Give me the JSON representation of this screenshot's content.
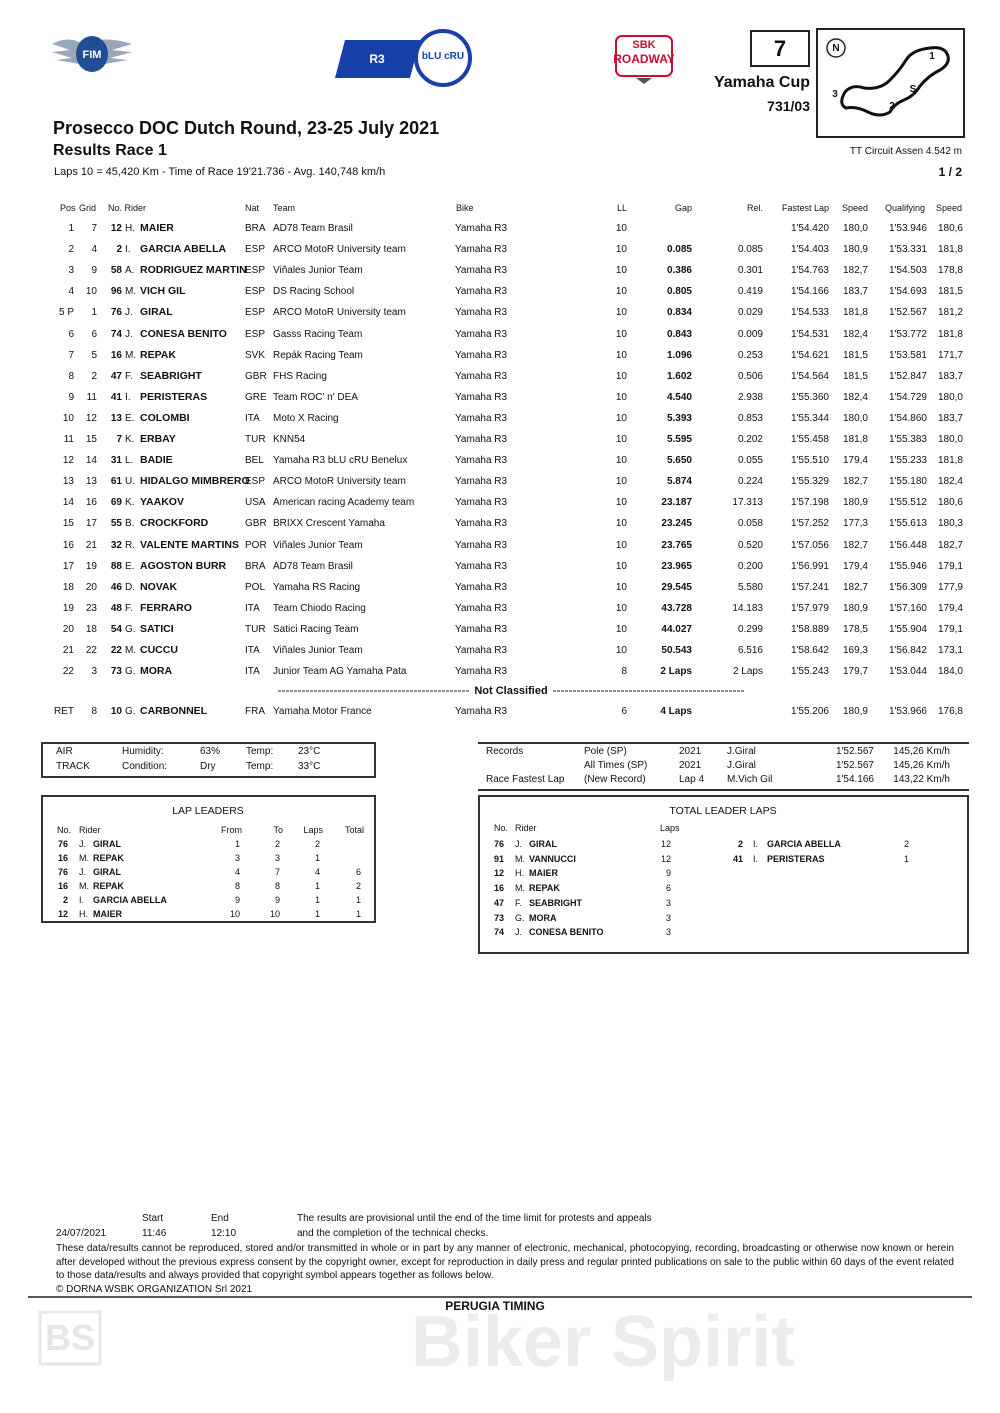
{
  "logos": {
    "fim": "FIM",
    "r3": "R3",
    "blucru": "bLU cRU",
    "sbk": "SBK",
    "roadway": "ROADWAY"
  },
  "header": {
    "round_no": "7",
    "cup": "Yamaha Cup",
    "doc_code": "731/03",
    "title": "Prosecco DOC Dutch Round, 23-25 July 2021",
    "subtitle": "Results Race 1",
    "race_info": "Laps 10 = 45,420 Km  -  Time of Race 19'21.736  -  Avg. 140,748 km/h",
    "circuit": "TT Circuit Assen 4.542 m",
    "page": "1 / 2"
  },
  "map_labels": {
    "north": "N",
    "t1": "1",
    "t2": "2",
    "t3": "3",
    "s": "S"
  },
  "results": {
    "columns": {
      "pos": "Pos",
      "grid": "Grid",
      "rider": "No. Rider",
      "nat": "Nat",
      "team": "Team",
      "bike": "Bike",
      "ll": "LL",
      "gap": "Gap",
      "rel": "Rel.",
      "fast": "Fastest Lap",
      "speed": "Speed",
      "qual": "Qualifying",
      "qspeed": "Speed"
    },
    "rows": [
      {
        "pos": "1",
        "grid": "7",
        "no": "12",
        "init": "H.",
        "name": "MAIER",
        "nat": "BRA",
        "team": "AD78 Team Brasil",
        "bike": "Yamaha R3",
        "ll": "10",
        "fast": "1'54.420",
        "speed": "180,0",
        "qual": "1'53.946",
        "qspeed": "180,6"
      },
      {
        "pos": "2",
        "grid": "4",
        "no": "2",
        "init": "I.",
        "name": "GARCIA ABELLA",
        "nat": "ESP",
        "team": "ARCO MotoR University team",
        "bike": "Yamaha R3",
        "ll": "10",
        "gap": "0.085",
        "rel": "0.085",
        "fast": "1'54.403",
        "speed": "180,9",
        "qual": "1'53.331",
        "qspeed": "181,8"
      },
      {
        "pos": "3",
        "grid": "9",
        "no": "58",
        "init": "A.",
        "name": "RODRIGUEZ MARTIN",
        "nat": "ESP",
        "team": "Viñales Junior Team",
        "bike": "Yamaha R3",
        "ll": "10",
        "gap": "0.386",
        "rel": "0.301",
        "fast": "1'54.763",
        "speed": "182,7",
        "qual": "1'54.503",
        "qspeed": "178,8"
      },
      {
        "pos": "4",
        "grid": "10",
        "no": "96",
        "init": "M.",
        "name": "VICH GIL",
        "nat": "ESP",
        "team": "DS Racing School",
        "bike": "Yamaha R3",
        "ll": "10",
        "gap": "0.805",
        "rel": "0.419",
        "fast": "1'54.166",
        "speed": "183,7",
        "qual": "1'54.693",
        "qspeed": "181,5"
      },
      {
        "pos": "5 P",
        "grid": "1",
        "no": "76",
        "init": "J.",
        "name": "GIRAL",
        "nat": "ESP",
        "team": "ARCO MotoR University team",
        "bike": "Yamaha R3",
        "ll": "10",
        "gap": "0.834",
        "rel": "0.029",
        "fast": "1'54.533",
        "speed": "181,8",
        "qual": "1'52.567",
        "qspeed": "181,2"
      },
      {
        "pos": "6",
        "grid": "6",
        "no": "74",
        "init": "J.",
        "name": "CONESA BENITO",
        "nat": "ESP",
        "team": "Gasss Racing Team",
        "bike": "Yamaha R3",
        "ll": "10",
        "gap": "0.843",
        "rel": "0.009",
        "fast": "1'54.531",
        "speed": "182,4",
        "qual": "1'53.772",
        "qspeed": "181,8"
      },
      {
        "pos": "7",
        "grid": "5",
        "no": "16",
        "init": "M.",
        "name": "REPAK",
        "nat": "SVK",
        "team": "Repák Racing Team",
        "bike": "Yamaha R3",
        "ll": "10",
        "gap": "1.096",
        "rel": "0.253",
        "fast": "1'54.621",
        "speed": "181,5",
        "qual": "1'53.581",
        "qspeed": "171,7"
      },
      {
        "pos": "8",
        "grid": "2",
        "no": "47",
        "init": "F.",
        "name": "SEABRIGHT",
        "nat": "GBR",
        "team": "FHS Racing",
        "bike": "Yamaha R3",
        "ll": "10",
        "gap": "1.602",
        "rel": "0.506",
        "fast": "1'54.564",
        "speed": "181,5",
        "qual": "1'52.847",
        "qspeed": "183,7"
      },
      {
        "pos": "9",
        "grid": "11",
        "no": "41",
        "init": "I.",
        "name": "PERISTERAS",
        "nat": "GRE",
        "team": "Team ROC' n' DEA",
        "bike": "Yamaha R3",
        "ll": "10",
        "gap": "4.540",
        "rel": "2.938",
        "fast": "1'55.360",
        "speed": "182,4",
        "qual": "1'54.729",
        "qspeed": "180,0"
      },
      {
        "pos": "10",
        "grid": "12",
        "no": "13",
        "init": "E.",
        "name": "COLOMBI",
        "nat": "ITA",
        "team": "Moto X Racing",
        "bike": "Yamaha R3",
        "ll": "10",
        "gap": "5.393",
        "rel": "0.853",
        "fast": "1'55.344",
        "speed": "180,0",
        "qual": "1'54.860",
        "qspeed": "183,7"
      },
      {
        "pos": "11",
        "grid": "15",
        "no": "7",
        "init": "K.",
        "name": "ERBAY",
        "nat": "TUR",
        "team": "KNN54",
        "bike": "Yamaha R3",
        "ll": "10",
        "gap": "5.595",
        "rel": "0.202",
        "fast": "1'55.458",
        "speed": "181,8",
        "qual": "1'55.383",
        "qspeed": "180,0"
      },
      {
        "pos": "12",
        "grid": "14",
        "no": "31",
        "init": "L.",
        "name": "BADIE",
        "nat": "BEL",
        "team": "Yamaha R3 bLU cRU Benelux",
        "bike": "Yamaha R3",
        "ll": "10",
        "gap": "5.650",
        "rel": "0.055",
        "fast": "1'55.510",
        "speed": "179,4",
        "qual": "1'55.233",
        "qspeed": "181,8"
      },
      {
        "pos": "13",
        "grid": "13",
        "no": "61",
        "init": "U.",
        "name": "HIDALGO MIMBRERO",
        "nat": "ESP",
        "team": "ARCO MotoR University team",
        "bike": "Yamaha R3",
        "ll": "10",
        "gap": "5.874",
        "rel": "0.224",
        "fast": "1'55.329",
        "speed": "182,7",
        "qual": "1'55.180",
        "qspeed": "182,4"
      },
      {
        "pos": "14",
        "grid": "16",
        "no": "69",
        "init": "K.",
        "name": "YAAKOV",
        "nat": "USA",
        "team": "American racing Academy team",
        "bike": "Yamaha R3",
        "ll": "10",
        "gap": "23.187",
        "rel": "17.313",
        "fast": "1'57.198",
        "speed": "180,9",
        "qual": "1'55.512",
        "qspeed": "180,6"
      },
      {
        "pos": "15",
        "grid": "17",
        "no": "55",
        "init": "B.",
        "name": "CROCKFORD",
        "nat": "GBR",
        "team": "BRIXX Crescent Yamaha",
        "bike": "Yamaha R3",
        "ll": "10",
        "gap": "23.245",
        "rel": "0.058",
        "fast": "1'57.252",
        "speed": "177,3",
        "qual": "1'55.613",
        "qspeed": "180,3"
      },
      {
        "pos": "16",
        "grid": "21",
        "no": "32",
        "init": "R.",
        "name": "VALENTE MARTINS",
        "nat": "POR",
        "team": "Viñales Junior Team",
        "bike": "Yamaha R3",
        "ll": "10",
        "gap": "23.765",
        "rel": "0.520",
        "fast": "1'57.056",
        "speed": "182,7",
        "qual": "1'56.448",
        "qspeed": "182,7"
      },
      {
        "pos": "17",
        "grid": "19",
        "no": "88",
        "init": "E.",
        "name": "AGOSTON BURR",
        "nat": "BRA",
        "team": "AD78 Team Brasil",
        "bike": "Yamaha R3",
        "ll": "10",
        "gap": "23.965",
        "rel": "0.200",
        "fast": "1'56.991",
        "speed": "179,4",
        "qual": "1'55.946",
        "qspeed": "179,1"
      },
      {
        "pos": "18",
        "grid": "20",
        "no": "46",
        "init": "D.",
        "name": "NOVAK",
        "nat": "POL",
        "team": "Yamaha RS Racing",
        "bike": "Yamaha R3",
        "ll": "10",
        "gap": "29.545",
        "rel": "5.580",
        "fast": "1'57.241",
        "speed": "182,7",
        "qual": "1'56.309",
        "qspeed": "177,9"
      },
      {
        "pos": "19",
        "grid": "23",
        "no": "48",
        "init": "F.",
        "name": "FERRARO",
        "nat": "ITA",
        "team": "Team Chiodo Racing",
        "bike": "Yamaha R3",
        "ll": "10",
        "gap": "43.728",
        "rel": "14.183",
        "fast": "1'57.979",
        "speed": "180,9",
        "qual": "1'57.160",
        "qspeed": "179,4"
      },
      {
        "pos": "20",
        "grid": "18",
        "no": "54",
        "init": "G.",
        "name": "SATICI",
        "nat": "TUR",
        "team": "Satici Racing Team",
        "bike": "Yamaha R3",
        "ll": "10",
        "gap": "44.027",
        "rel": "0.299",
        "fast": "1'58.889",
        "speed": "178,5",
        "qual": "1'55.904",
        "qspeed": "179,1"
      },
      {
        "pos": "21",
        "grid": "22",
        "no": "22",
        "init": "M.",
        "name": "CUCCU",
        "nat": "ITA",
        "team": "Viñales Junior Team",
        "bike": "Yamaha R3",
        "ll": "10",
        "gap": "50.543",
        "rel": "6.516",
        "fast": "1'58.642",
        "speed": "169,3",
        "qual": "1'56.842",
        "qspeed": "173,1"
      },
      {
        "pos": "22",
        "grid": "3",
        "no": "73",
        "init": "G.",
        "name": "MORA",
        "nat": "ITA",
        "team": "Junior Team AG Yamaha Pata",
        "bike": "Yamaha R3",
        "ll": "8",
        "gap": "2 Laps",
        "rel": "2 Laps",
        "fast": "1'55.243",
        "speed": "179,7",
        "qual": "1'53.044",
        "qspeed": "184,0"
      }
    ],
    "not_classified_label": "Not Classified",
    "not_classified": [
      {
        "pos": "RET",
        "grid": "8",
        "no": "10",
        "init": "G.",
        "name": "CARBONNEL",
        "nat": "FRA",
        "team": "Yamaha Motor France",
        "bike": "Yamaha R3",
        "ll": "6",
        "gap": "4 Laps",
        "fast": "1'55.206",
        "speed": "180,9",
        "qual": "1'53.966",
        "qspeed": "176,8"
      }
    ]
  },
  "conditions": [
    [
      "AIR",
      "Humidity:",
      "63%",
      "Temp:",
      "23°C"
    ],
    [
      "TRACK",
      "Condition:",
      "Dry",
      "Temp:",
      "33°C"
    ]
  ],
  "records": [
    {
      "label": "Records",
      "type": "Pole (SP)",
      "year": "2021",
      "holder": "J.Giral",
      "time": "1'52.567",
      "speed": "145,26 Km/h"
    },
    {
      "type": "All Times (SP)",
      "year": "2021",
      "holder": "J.Giral",
      "time": "1'52.567",
      "speed": "145,26 Km/h"
    },
    {
      "label": "Race Fastest Lap",
      "type": "(New Record)",
      "year": "Lap 4",
      "holder": "M.Vich Gil",
      "time": "1'54.166",
      "speed": "143,22 Km/h"
    }
  ],
  "lap_leaders": {
    "title": "LAP LEADERS",
    "columns": {
      "no": "No.",
      "rider": "Rider",
      "from": "From",
      "to": "To",
      "laps": "Laps",
      "total": "Total"
    },
    "rows": [
      {
        "no": "76",
        "init": "J.",
        "name": "GIRAL",
        "from": "1",
        "to": "2",
        "laps": "2"
      },
      {
        "no": "16",
        "init": "M.",
        "name": "REPAK",
        "from": "3",
        "to": "3",
        "laps": "1"
      },
      {
        "no": "76",
        "init": "J.",
        "name": "GIRAL",
        "from": "4",
        "to": "7",
        "laps": "4",
        "total": "6"
      },
      {
        "no": "16",
        "init": "M.",
        "name": "REPAK",
        "from": "8",
        "to": "8",
        "laps": "1",
        "total": "2"
      },
      {
        "no": "2",
        "init": "I.",
        "name": "GARCIA ABELLA",
        "from": "9",
        "to": "9",
        "laps": "1",
        "total": "1"
      },
      {
        "no": "12",
        "init": "H.",
        "name": "MAIER",
        "from": "10",
        "to": "10",
        "laps": "1",
        "total": "1"
      }
    ]
  },
  "total_leader_laps": {
    "title": "TOTAL LEADER LAPS",
    "columns": {
      "no": "No.",
      "rider": "Rider",
      "laps": "Laps"
    },
    "left": [
      {
        "no": "76",
        "init": "J.",
        "name": "GIRAL",
        "laps": "12"
      },
      {
        "no": "91",
        "init": "M.",
        "name": "VANNUCCI",
        "laps": "12"
      },
      {
        "no": "12",
        "init": "H.",
        "name": "MAIER",
        "laps": "9"
      },
      {
        "no": "16",
        "init": "M.",
        "name": "REPAK",
        "laps": "6"
      },
      {
        "no": "47",
        "init": "F.",
        "name": "SEABRIGHT",
        "laps": "3"
      },
      {
        "no": "73",
        "init": "G.",
        "name": "MORA",
        "laps": "3"
      },
      {
        "no": "74",
        "init": "J.",
        "name": "CONESA BENITO",
        "laps": "3"
      }
    ],
    "right": [
      {
        "no": "2",
        "init": "I.",
        "name": "GARCIA ABELLA",
        "laps": "2"
      },
      {
        "no": "41",
        "init": "I.",
        "name": "PERISTERAS",
        "laps": "1"
      }
    ]
  },
  "footer": {
    "start_label": "Start",
    "end_label": "End",
    "date": "24/07/2021",
    "start": "11:46",
    "end": "12:10",
    "note1": "The results are provisional until the end of the time limit for protests and appeals",
    "note2": "and the completion of the technical checks.",
    "disclaimer": "These data/results cannot be reproduced, stored and/or transmitted in whole or in part by any manner of electronic, mechanical, photocopying, recording, broadcasting or otherwise now known or herein after developed without the previous express consent by the copyright owner, except for reproduction in daily press and regular printed publications on sale to the public within 60 days of the event related to those data/results and always provided that copyright symbol appears together as follows below.",
    "copyright": "© DORNA WSBK ORGANIZATION Srl 2021",
    "timing": "PERUGIA TIMING",
    "watermark": "Biker Spirit",
    "watermark_logo": "BS"
  }
}
